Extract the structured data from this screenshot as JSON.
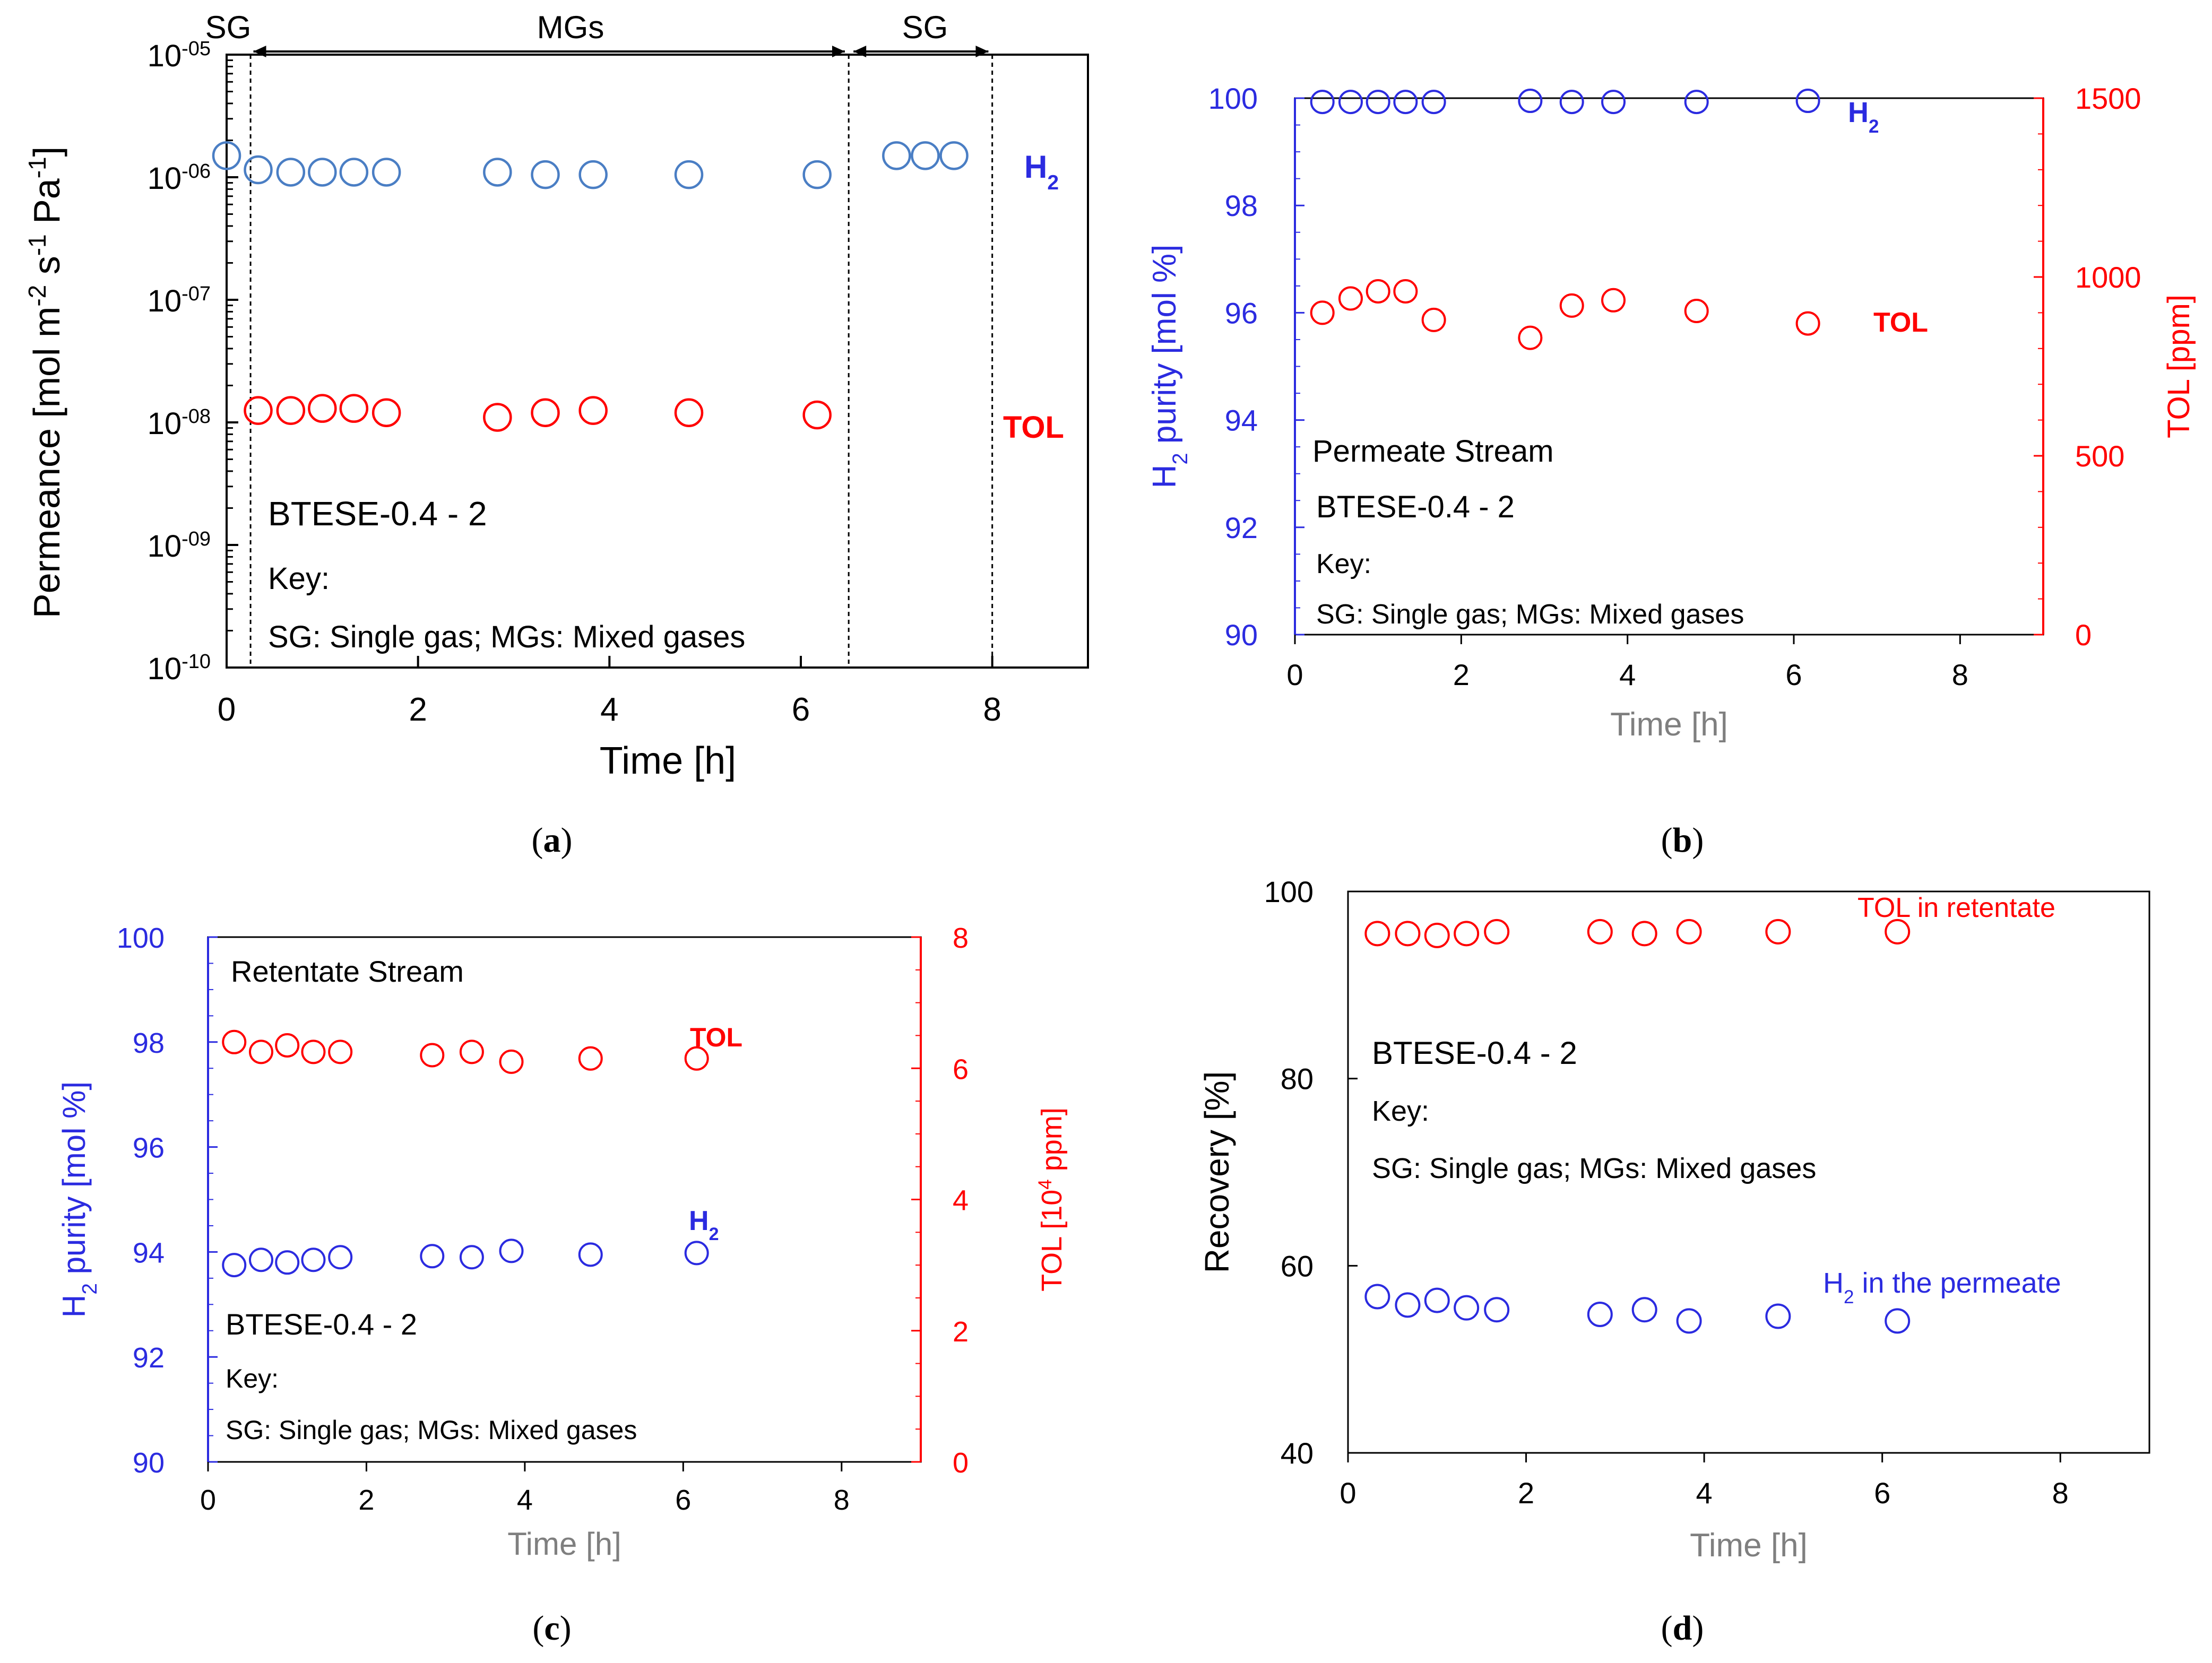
{
  "colors": {
    "h2_blue_a": "#4A7EC4",
    "tol_red": "#FF0000",
    "h2_blue": "#2B2BE0",
    "gray_label": "#7F7F7F",
    "black": "#000000"
  },
  "panels": [
    {
      "id": "a",
      "caption": "a"
    },
    {
      "id": "b",
      "caption": "b"
    },
    {
      "id": "c",
      "caption": "c"
    },
    {
      "id": "d",
      "caption": "d"
    }
  ],
  "chart_data": [
    {
      "panel": "a",
      "type": "scatter",
      "ylabel": "Permeance [mol m-2 s-1 Pa-1]",
      "ylabel_parts": [
        "Permeance [mol m",
        "-2",
        " s",
        "-1",
        " Pa",
        "-1",
        "]"
      ],
      "xlabel": "Time [h]",
      "xlim": [
        0,
        9
      ],
      "xticks": [
        0,
        2,
        4,
        6,
        8
      ],
      "xtick_labels": [
        "0",
        "2",
        "4",
        "6",
        "8"
      ],
      "yscale": "log",
      "ylim_exp": [
        -10,
        -5
      ],
      "ytick_exps": [
        -5,
        -6,
        -7,
        -8,
        -9,
        -10
      ],
      "ytick_base": [
        "10",
        "10",
        "10",
        "10",
        "10",
        "10"
      ],
      "ytick_sup": [
        "-05",
        "-06",
        "-07",
        "-08",
        "-09",
        "-10"
      ],
      "phase_boundaries": [
        0.25,
        6.5,
        8.0
      ],
      "phase_labels": [
        "SG",
        "MGs",
        "SG"
      ],
      "series": [
        {
          "name": "H2",
          "label_main": "H",
          "label_sub": "2",
          "color": "#4A7EC4",
          "x": [
            0,
            0.33,
            0.67,
            1.0,
            1.33,
            1.67,
            2.83,
            3.33,
            3.83,
            4.83,
            6.17,
            7.0,
            7.3,
            7.6
          ],
          "y": [
            1.5e-06,
            1.15e-06,
            1.1e-06,
            1.1e-06,
            1.1e-06,
            1.1e-06,
            1.1e-06,
            1.05e-06,
            1.05e-06,
            1.05e-06,
            1.05e-06,
            1.5e-06,
            1.5e-06,
            1.5e-06
          ]
        },
        {
          "name": "TOL",
          "label_main": "TOL",
          "label_sub": "",
          "color": "#FF0000",
          "x": [
            0.33,
            0.67,
            1.0,
            1.33,
            1.67,
            2.83,
            3.33,
            3.83,
            4.83,
            6.17
          ],
          "y": [
            1.25e-08,
            1.25e-08,
            1.3e-08,
            1.3e-08,
            1.2e-08,
            1.1e-08,
            1.2e-08,
            1.25e-08,
            1.2e-08,
            1.15e-08
          ]
        }
      ],
      "annotations": [
        "BTESE-0.4 - 2",
        "Key:",
        "SG: Single gas; MGs: Mixed gases"
      ]
    },
    {
      "panel": "b",
      "type": "scatter",
      "title_note": "Permeate Stream",
      "ylabel": "H2 purity [mol %]",
      "ylabel_main": "H",
      "ylabel_sub": "2",
      "ylabel_rest": " purity [mol %]",
      "y2label": "TOL [ppm]",
      "xlabel": "Time [h]",
      "xlim": [
        0,
        9
      ],
      "xticks": [
        0,
        2,
        4,
        6,
        8
      ],
      "xtick_labels": [
        "0",
        "2",
        "4",
        "6",
        "8"
      ],
      "ylim": [
        90,
        100
      ],
      "yticks": [
        90,
        92,
        94,
        96,
        98,
        100
      ],
      "ytick_labels": [
        "90",
        "92",
        "94",
        "96",
        "98",
        "100"
      ],
      "y2lim": [
        0,
        1500
      ],
      "y2ticks": [
        0,
        500,
        1000,
        1500
      ],
      "y2tick_labels": [
        "0",
        "500",
        "1000",
        "1500"
      ],
      "series": [
        {
          "name": "H2",
          "label_main": "H",
          "label_sub": "2",
          "color": "#2B2BE0",
          "axis": "left",
          "x": [
            0.33,
            0.67,
            1.0,
            1.33,
            1.67,
            2.83,
            3.33,
            3.83,
            4.83,
            6.17
          ],
          "y": [
            99.93,
            99.93,
            99.93,
            99.93,
            99.93,
            99.95,
            99.93,
            99.93,
            99.93,
            99.95
          ]
        },
        {
          "name": "TOL",
          "label_main": "TOL",
          "label_sub": "",
          "color": "#FF0000",
          "axis": "right",
          "x": [
            0.33,
            0.67,
            1.0,
            1.33,
            1.67,
            2.83,
            3.33,
            3.83,
            4.83,
            6.17
          ],
          "y": [
            900,
            940,
            960,
            960,
            880,
            830,
            920,
            935,
            905,
            870
          ]
        }
      ],
      "annotations": [
        "BTESE-0.4 - 2",
        "Key:",
        "SG: Single gas; MGs: Mixed gases"
      ]
    },
    {
      "panel": "c",
      "type": "scatter",
      "title_note": "Retentate Stream",
      "ylabel": "H2 purity [mol %]",
      "ylabel_main": "H",
      "ylabel_sub": "2",
      "ylabel_rest": " purity [mol %]",
      "y2label": "TOL [104 ppm]",
      "y2label_pre": "TOL [10",
      "y2label_sup": "4",
      "y2label_post": " ppm]",
      "xlabel": "Time [h]",
      "xlim": [
        0,
        9
      ],
      "xticks": [
        0,
        2,
        4,
        6,
        8
      ],
      "xtick_labels": [
        "0",
        "2",
        "4",
        "6",
        "8"
      ],
      "ylim": [
        90,
        100
      ],
      "yticks": [
        90,
        92,
        94,
        96,
        98,
        100
      ],
      "ytick_labels": [
        "90",
        "92",
        "94",
        "96",
        "98",
        "100"
      ],
      "y2lim": [
        0,
        8
      ],
      "y2ticks": [
        0,
        2,
        4,
        6,
        8
      ],
      "y2tick_labels": [
        "0",
        "2",
        "4",
        "6",
        "8"
      ],
      "series": [
        {
          "name": "H2",
          "label_main": "H",
          "label_sub": "2",
          "color": "#2B2BE0",
          "axis": "left",
          "x": [
            0.33,
            0.67,
            1.0,
            1.33,
            1.67,
            2.83,
            3.33,
            3.83,
            4.83,
            6.17
          ],
          "y": [
            93.75,
            93.85,
            93.8,
            93.85,
            93.9,
            93.92,
            93.9,
            94.02,
            93.95,
            93.98
          ]
        },
        {
          "name": "TOL",
          "label_main": "TOL",
          "label_sub": "",
          "color": "#FF0000",
          "axis": "right",
          "x": [
            0.33,
            0.67,
            1.0,
            1.33,
            1.67,
            2.83,
            3.33,
            3.83,
            4.83,
            6.17
          ],
          "y": [
            6.4,
            6.25,
            6.35,
            6.25,
            6.25,
            6.2,
            6.25,
            6.1,
            6.15,
            6.15
          ]
        }
      ],
      "annotations": [
        "BTESE-0.4 - 2",
        "Key:",
        "SG: Single gas; MGs: Mixed gases"
      ]
    },
    {
      "panel": "d",
      "type": "scatter",
      "ylabel": "Recovery [%]",
      "xlabel": "Time [h]",
      "xlim": [
        0,
        9
      ],
      "xticks": [
        0,
        2,
        4,
        6,
        8
      ],
      "xtick_labels": [
        "0",
        "2",
        "4",
        "6",
        "8"
      ],
      "ylim": [
        40,
        100
      ],
      "yticks": [
        40,
        60,
        80,
        100
      ],
      "ytick_labels": [
        "40",
        "60",
        "80",
        "100"
      ],
      "series": [
        {
          "name": "TOL in retentate",
          "label": "TOL in retentate",
          "color": "#FF0000",
          "x": [
            0.33,
            0.67,
            1.0,
            1.33,
            1.67,
            2.83,
            3.33,
            3.83,
            4.83,
            6.17
          ],
          "y": [
            95.5,
            95.5,
            95.3,
            95.5,
            95.7,
            95.7,
            95.5,
            95.7,
            95.7,
            95.7
          ]
        },
        {
          "name": "H2 in the permeate",
          "label_main": "H",
          "label_sub": "2",
          "label_rest": "  in the permeate",
          "color": "#2B2BE0",
          "x": [
            0.33,
            0.67,
            1.0,
            1.33,
            1.67,
            2.83,
            3.33,
            3.83,
            4.83,
            6.17
          ],
          "y": [
            56.7,
            55.8,
            56.3,
            55.5,
            55.3,
            54.8,
            55.3,
            54.1,
            54.6,
            54.1
          ]
        }
      ],
      "annotations": [
        "BTESE-0.4 - 2",
        "Key:",
        "SG: Single gas; MGs: Mixed gases"
      ]
    }
  ]
}
